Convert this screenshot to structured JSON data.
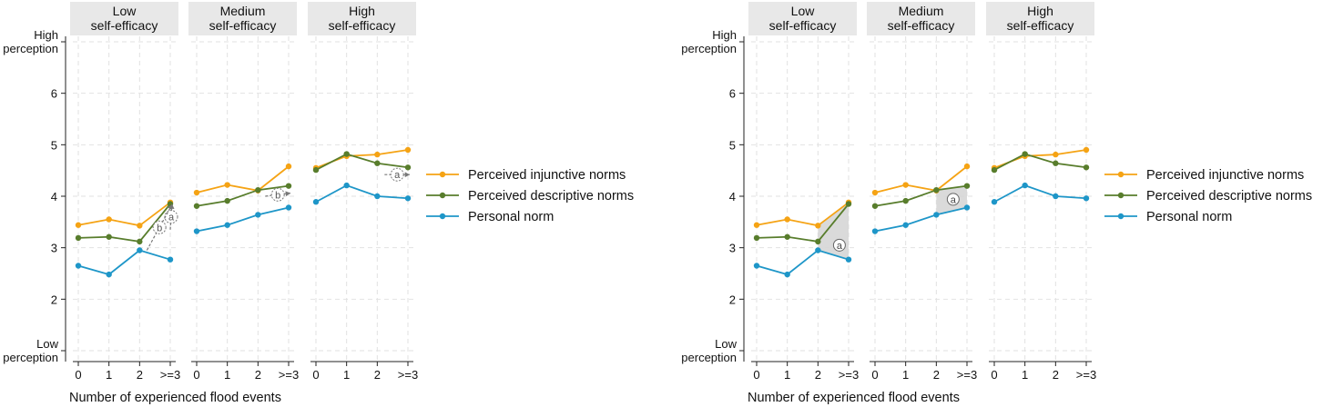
{
  "colors": {
    "injunctive": "#F5A314",
    "descriptive": "#587D2C",
    "personal": "#1E96C8",
    "header_bg": "#E8E8E8",
    "grid": "#E2E2E2",
    "annot": "#777777",
    "shade": "#D6D6D6"
  },
  "legend": [
    "Perceived injunctive norms",
    "Perceived descriptive norms",
    "Personal norm"
  ],
  "chart_data": [
    {
      "type": "line",
      "xlabel": "Number of experienced flood events",
      "categories": [
        "0",
        "1",
        "2",
        ">=3"
      ],
      "y_ticks": [
        "High\nperception",
        "6",
        "5",
        "4",
        "3",
        "2",
        "Low\nperception"
      ],
      "y_tick_values": [
        7,
        6,
        5,
        4,
        3,
        2,
        1
      ],
      "ylim": [
        1,
        7
      ],
      "panels": [
        {
          "title": "Low\nself-efficacy",
          "series": [
            {
              "name": "Perceived injunctive norms",
              "values": [
                3.44,
                3.55,
                3.43,
                3.88
              ]
            },
            {
              "name": "Perceived descriptive norms",
              "values": [
                3.19,
                3.21,
                3.12,
                3.85
              ]
            },
            {
              "name": "Personal norm",
              "values": [
                2.65,
                2.48,
                2.95,
                2.77
              ]
            }
          ],
          "annotations": [
            {
              "label": "a",
              "style": "dashed-arrow",
              "from": [
                3,
                3.35
              ],
              "to": [
                3,
                3.85
              ]
            },
            {
              "label": "b",
              "style": "dashed-arrow",
              "from": [
                2,
                2.95
              ],
              "to": [
                3,
                3.84
              ]
            }
          ]
        },
        {
          "title": "Medium\nself-efficacy",
          "series": [
            {
              "name": "Perceived injunctive norms",
              "values": [
                4.07,
                4.22,
                4.11,
                4.58
              ]
            },
            {
              "name": "Perceived descriptive norms",
              "values": [
                3.81,
                3.91,
                4.12,
                4.2
              ]
            },
            {
              "name": "Personal norm",
              "values": [
                3.32,
                3.44,
                3.64,
                3.78
              ]
            }
          ],
          "annotations": [
            {
              "label": "b",
              "style": "dashed-arrow",
              "from": [
                2,
                4.0
              ],
              "to": [
                3,
                4.06
              ]
            }
          ]
        },
        {
          "title": "High\nself-efficacy",
          "series": [
            {
              "name": "Perceived injunctive norms",
              "values": [
                4.55,
                4.78,
                4.81,
                4.9
              ]
            },
            {
              "name": "Perceived descriptive norms",
              "values": [
                4.51,
                4.82,
                4.64,
                4.56
              ]
            },
            {
              "name": "Personal norm",
              "values": [
                3.89,
                4.21,
                4.0,
                3.96
              ]
            }
          ],
          "annotations": [
            {
              "label": "a",
              "style": "dashed-arrow",
              "from": [
                2,
                4.42
              ],
              "to": [
                3,
                4.42
              ]
            }
          ]
        }
      ]
    },
    {
      "type": "line",
      "xlabel": "Number of experienced flood events",
      "categories": [
        "0",
        "1",
        "2",
        ">=3"
      ],
      "y_ticks": [
        "High\nperception",
        "6",
        "5",
        "4",
        "3",
        "2",
        "Low\nperception"
      ],
      "y_tick_values": [
        7,
        6,
        5,
        4,
        3,
        2,
        1
      ],
      "ylim": [
        1,
        7
      ],
      "panels": [
        {
          "title": "Low\nself-efficacy",
          "series": [
            {
              "name": "Perceived injunctive norms",
              "values": [
                3.44,
                3.55,
                3.43,
                3.88
              ]
            },
            {
              "name": "Perceived descriptive norms",
              "values": [
                3.19,
                3.21,
                3.12,
                3.85
              ]
            },
            {
              "name": "Personal norm",
              "values": [
                2.65,
                2.48,
                2.95,
                2.77
              ]
            }
          ],
          "annotations": [
            {
              "label": "a",
              "style": "shaded",
              "at": [
                2.7,
                3.05
              ]
            }
          ]
        },
        {
          "title": "Medium\nself-efficacy",
          "series": [
            {
              "name": "Perceived injunctive norms",
              "values": [
                4.07,
                4.22,
                4.11,
                4.58
              ]
            },
            {
              "name": "Perceived descriptive norms",
              "values": [
                3.81,
                3.91,
                4.12,
                4.2
              ]
            },
            {
              "name": "Personal norm",
              "values": [
                3.32,
                3.44,
                3.64,
                3.78
              ]
            }
          ],
          "annotations": [
            {
              "label": "a",
              "style": "shaded",
              "at": [
                2.55,
                3.94
              ]
            }
          ]
        },
        {
          "title": "High\nself-efficacy",
          "series": [
            {
              "name": "Perceived injunctive norms",
              "values": [
                4.55,
                4.78,
                4.81,
                4.9
              ]
            },
            {
              "name": "Perceived descriptive norms",
              "values": [
                4.51,
                4.82,
                4.64,
                4.56
              ]
            },
            {
              "name": "Personal norm",
              "values": [
                3.89,
                4.21,
                4.0,
                3.96
              ]
            }
          ],
          "annotations": []
        }
      ]
    }
  ]
}
